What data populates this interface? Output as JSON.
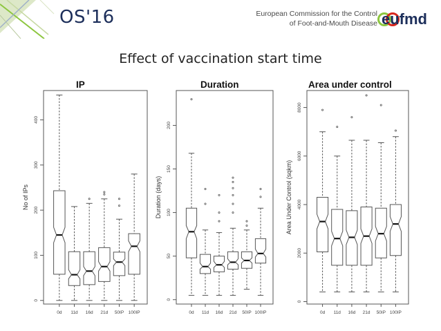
{
  "header": {
    "event_title": "OS'16",
    "commission_line1": "European Commission for the Control",
    "commission_line2": "of Foot-and-Mouth Disease",
    "logo_text": "eufmd"
  },
  "slide": {
    "title": "Effect of vaccination start time"
  },
  "colors": {
    "navy": "#1d2f5b",
    "green": "#8dc63f",
    "red": "#d9261c"
  },
  "chart_data": [
    {
      "type": "box",
      "title": "IP",
      "xlabel": "",
      "ylabel": "No of IPs",
      "categories": [
        "0d",
        "11d",
        "16d",
        "21d",
        "50IP",
        "100IP"
      ],
      "yticks": [
        0,
        100,
        200,
        300,
        400
      ],
      "ylim": [
        -8,
        465
      ],
      "boxes": [
        {
          "min": 0,
          "q1": 58,
          "median": 145,
          "q3": 243,
          "max": 455,
          "notch": [
            128,
            162
          ],
          "outliers": []
        },
        {
          "min": 0,
          "q1": 33,
          "median": 57,
          "q3": 108,
          "max": 208,
          "notch": [
            48,
            68
          ],
          "outliers": []
        },
        {
          "min": 0,
          "q1": 35,
          "median": 65,
          "q3": 108,
          "max": 215,
          "notch": [
            55,
            75
          ],
          "outliers": [
            225
          ]
        },
        {
          "min": 0,
          "q1": 42,
          "median": 75,
          "q3": 117,
          "max": 225,
          "notch": [
            65,
            86
          ],
          "outliers": [
            235,
            240
          ]
        },
        {
          "min": 0,
          "q1": 55,
          "median": 85,
          "q3": 107,
          "max": 180,
          "notch": [
            77,
            92
          ],
          "outliers": [
            210,
            225
          ]
        },
        {
          "min": 0,
          "q1": 58,
          "median": 120,
          "q3": 148,
          "max": 280,
          "notch": [
            108,
            132
          ],
          "outliers": []
        }
      ]
    },
    {
      "type": "box",
      "title": "Duration",
      "xlabel": "",
      "ylabel": "Duration (days)",
      "categories": [
        "0d",
        "11d",
        "16d",
        "21d",
        "50IP",
        "100IP"
      ],
      "yticks": [
        0,
        50,
        100,
        150,
        200
      ],
      "ylim": [
        -5,
        240
      ],
      "boxes": [
        {
          "min": 5,
          "q1": 48,
          "median": 78,
          "q3": 105,
          "max": 168,
          "notch": [
            70,
            85
          ],
          "outliers": [
            230
          ]
        },
        {
          "min": 5,
          "q1": 30,
          "median": 38,
          "q3": 52,
          "max": 80,
          "notch": [
            35,
            42
          ],
          "outliers": [
            110,
            127
          ]
        },
        {
          "min": 5,
          "q1": 32,
          "median": 40,
          "q3": 50,
          "max": 77,
          "notch": [
            37,
            44
          ],
          "outliers": [
            90,
            100,
            120
          ]
        },
        {
          "min": 5,
          "q1": 35,
          "median": 43,
          "q3": 55,
          "max": 82,
          "notch": [
            40,
            47
          ],
          "outliers": [
            100,
            110,
            120,
            128,
            135,
            140
          ]
        },
        {
          "min": 12,
          "q1": 36,
          "median": 45,
          "q3": 55,
          "max": 80,
          "notch": [
            42,
            48
          ],
          "outliers": [
            85,
            90
          ]
        },
        {
          "min": 5,
          "q1": 42,
          "median": 53,
          "q3": 70,
          "max": 105,
          "notch": [
            49,
            58
          ],
          "outliers": [
            118,
            127
          ]
        }
      ]
    },
    {
      "type": "box",
      "title": "Area under control",
      "xlabel": "",
      "ylabel": "Area Under Control (sqkm)",
      "categories": [
        "0d",
        "11d",
        "16d",
        "21d",
        "50IP",
        "100IP"
      ],
      "yticks": [
        0,
        2000,
        4000,
        6000,
        8000
      ],
      "ylim": [
        -100,
        8700
      ],
      "boxes": [
        {
          "min": 400,
          "q1": 2050,
          "median": 3300,
          "q3": 4300,
          "max": 7000,
          "notch": [
            3000,
            3600
          ],
          "outliers": [
            7900
          ]
        },
        {
          "min": 400,
          "q1": 1500,
          "median": 2600,
          "q3": 3800,
          "max": 6000,
          "notch": [
            2300,
            2900
          ],
          "outliers": [
            7200
          ]
        },
        {
          "min": 400,
          "q1": 1500,
          "median": 2650,
          "q3": 3750,
          "max": 6650,
          "notch": [
            2350,
            2950
          ],
          "outliers": [
            7600
          ]
        },
        {
          "min": 400,
          "q1": 1500,
          "median": 2700,
          "q3": 3900,
          "max": 6650,
          "notch": [
            2400,
            3000
          ],
          "outliers": [
            8500
          ]
        },
        {
          "min": 400,
          "q1": 1800,
          "median": 2800,
          "q3": 3850,
          "max": 6550,
          "notch": [
            2500,
            3100
          ],
          "outliers": [
            8100
          ]
        },
        {
          "min": 400,
          "q1": 1900,
          "median": 3200,
          "q3": 4000,
          "max": 6800,
          "notch": [
            2900,
            3500
          ],
          "outliers": [
            7050
          ]
        }
      ]
    }
  ]
}
